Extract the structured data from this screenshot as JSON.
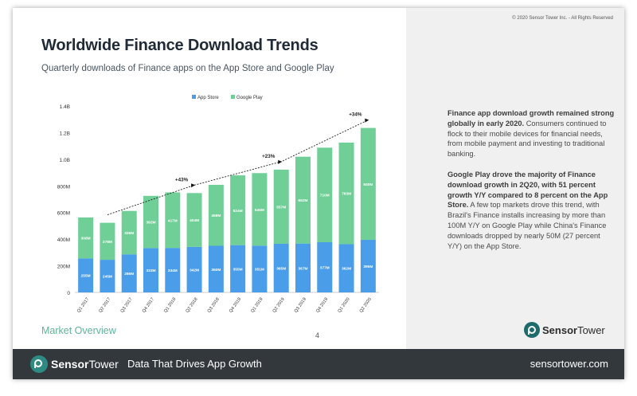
{
  "slide": {
    "title": "Worldwide Finance Download Trends",
    "subtitle": "Quarterly downloads of Finance apps on the App Store and Google Play",
    "section_label": "Market Overview",
    "page_number": "4"
  },
  "sidebar": {
    "copyright": "© 2020 Sensor Tower Inc. - All Rights Reserved",
    "paragraph1_bold": "Finance app download growth remained strong globally in early 2020.",
    "paragraph1_text": " Consumers continued to flock to their mobile devices for financial needs, from mobile payment and investing to traditional banking.",
    "paragraph2_bold": "Google Play drove the majority of Finance download growth in 2Q20, with 51 percent growth Y/Y compared to 8 percent on the App Store.",
    "paragraph2_text": " A few top markets drove this trend, with Brazil's Finance installs increasing by more than 100M Y/Y on Google Play while China's Finance downloads dropped by nearly 50M (27 percent Y/Y) on the App Store.",
    "logo_brand_a": "Sensor",
    "logo_brand_b": "Tower"
  },
  "footer": {
    "logo_brand_a": "Sensor",
    "logo_brand_b": "Tower",
    "tagline": "Data That Drives App Growth",
    "website": "sensortower.com"
  },
  "colors": {
    "app_store": "#4a9de8",
    "google_play": "#6fcf97",
    "accent": "#2e8b84"
  },
  "chart_data": {
    "type": "bar",
    "stacked": true,
    "categories": [
      "Q1 2017",
      "Q2 2017",
      "Q3 2017",
      "Q4 2017",
      "Q1 2018",
      "Q2 2018",
      "Q3 2018",
      "Q4 2018",
      "Q1 2019",
      "Q2 2019",
      "Q3 2019",
      "Q4 2019",
      "Q1 2020",
      "Q2 2020"
    ],
    "series": [
      {
        "name": "App Store",
        "values": [
          255,
          245,
          286,
          333,
          334,
          342,
          350,
          355,
          351,
          365,
          367,
          377,
          362,
          395
        ],
        "labels": [
          "255M",
          "245M",
          "286M",
          "333M",
          "334M",
          "342M",
          "350M",
          "355M",
          "351M",
          "365M",
          "367M",
          "377M",
          "362M",
          "395M"
        ]
      },
      {
        "name": "Google Play",
        "values": [
          308,
          278,
          326,
          392,
          417,
          404,
          458,
          524,
          545,
          557,
          652,
          710,
          763,
          840
        ],
        "labels": [
          "308M",
          "278M",
          "326M",
          "392M",
          "417M",
          "404M",
          "458M",
          "524M",
          "545M",
          "557M",
          "652M",
          "710M",
          "763M",
          "840M"
        ]
      }
    ],
    "yticks": [
      "0",
      "200M",
      "400M",
      "600M",
      "800M",
      "1.0B",
      "1.2B",
      "1.4B"
    ],
    "ylim": [
      0,
      1400
    ],
    "legend_position": "top",
    "growth_annotations": [
      {
        "label": "+43%",
        "from": 1,
        "to": 5
      },
      {
        "label": "+23%",
        "from": 5,
        "to": 9
      },
      {
        "label": "+34%",
        "from": 9,
        "to": 13
      }
    ]
  }
}
